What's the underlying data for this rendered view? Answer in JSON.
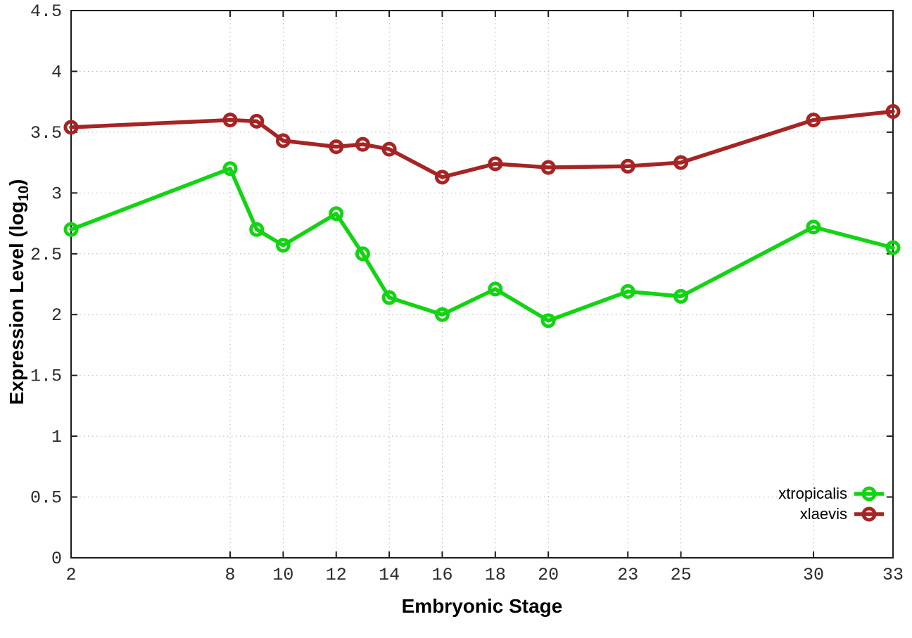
{
  "chart_data": {
    "type": "line",
    "title": "",
    "xlabel": "Embryonic Stage",
    "ylabel": "Expression Level (log10)",
    "ylabel_prefix": "Expression Level (log",
    "ylabel_sub": "10",
    "ylabel_suffix": ")",
    "xlim": [
      2,
      33
    ],
    "ylim": [
      0,
      4.5
    ],
    "grid": "dotted",
    "grid_color": "#b5b5b5",
    "legend_position": "bottom-right-inside",
    "x_tick_stages": [
      2,
      8,
      10,
      12,
      14,
      16,
      18,
      20,
      23,
      25,
      30,
      33
    ],
    "x_tick_labels": [
      "2",
      "8",
      "10",
      "12",
      "14",
      "16",
      "18",
      "20",
      "23",
      "25",
      "30",
      "33"
    ],
    "y_tick_values": [
      0,
      0.5,
      1,
      1.5,
      2,
      2.5,
      3,
      3.5,
      4,
      4.5
    ],
    "y_tick_labels": [
      "0",
      "0.5",
      "1",
      "1.5",
      "2",
      "2.5",
      "3",
      "3.5",
      "4",
      "4.5"
    ],
    "x": [
      2,
      8,
      9,
      10,
      12,
      13,
      14,
      16,
      18,
      20,
      23,
      25,
      30,
      33
    ],
    "series": [
      {
        "name": "xtropicalis",
        "color": "#12d412",
        "values": [
          2.7,
          3.2,
          2.7,
          2.57,
          2.83,
          2.5,
          2.14,
          2.0,
          2.21,
          1.95,
          2.19,
          2.15,
          2.72,
          2.55
        ]
      },
      {
        "name": "xlaevis",
        "color": "#a62424",
        "values": [
          3.54,
          3.6,
          3.59,
          3.43,
          3.38,
          3.4,
          3.36,
          3.13,
          3.24,
          3.21,
          3.22,
          3.25,
          3.6,
          3.67
        ]
      }
    ]
  }
}
